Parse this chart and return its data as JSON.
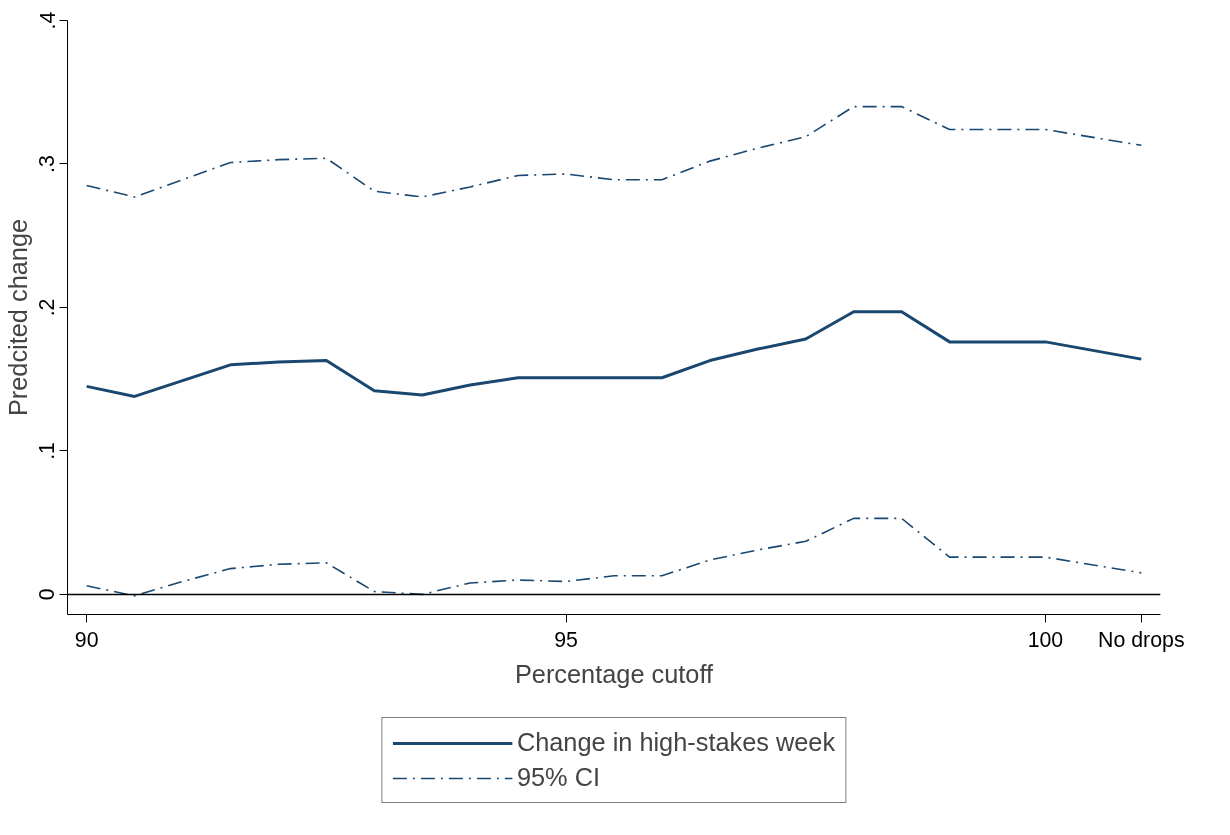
{
  "chart_data": {
    "type": "line",
    "xlabel": "Percentage cutoff",
    "ylabel": "Predcited change",
    "x": [
      90,
      90.5,
      91,
      91.5,
      92,
      92.5,
      93,
      93.5,
      94,
      94.5,
      95,
      95.5,
      96,
      96.5,
      97,
      97.5,
      98,
      98.5,
      99,
      99.5,
      100,
      101
    ],
    "series": [
      {
        "name": "Change in high-stakes week",
        "color": "#1a476f",
        "line_style": "solid",
        "values": [
          0.145,
          0.138,
          0.149,
          0.16,
          0.162,
          0.163,
          0.142,
          0.139,
          0.146,
          0.151,
          0.151,
          0.151,
          0.151,
          0.163,
          0.171,
          0.178,
          0.197,
          0.197,
          0.176,
          0.176,
          0.176,
          0.164
        ]
      },
      {
        "name": "95% CI",
        "color": "#1a476f",
        "line_style": "dashdot",
        "values": [
          0.285,
          0.277,
          0.289,
          0.301,
          0.303,
          0.304,
          0.281,
          0.277,
          0.284,
          0.292,
          0.293,
          0.289,
          0.289,
          0.302,
          0.311,
          0.319,
          0.34,
          0.34,
          0.324,
          0.324,
          0.324,
          0.313
        ]
      },
      {
        "color": "#1a476f",
        "line_style": "dashdot",
        "values": [
          0.006,
          -0.001,
          0.009,
          0.018,
          0.021,
          0.022,
          0.002,
          0.0,
          0.008,
          0.01,
          0.009,
          0.013,
          0.013,
          0.024,
          0.031,
          0.037,
          0.053,
          0.053,
          0.026,
          0.026,
          0.026,
          0.015
        ]
      }
    ],
    "xlim": [
      89.8,
      101.2
    ],
    "ylim": [
      -0.014,
      0.4
    ],
    "xticks": [
      90,
      95,
      100,
      {
        "value": 101,
        "label": "No drops"
      }
    ],
    "yticks": [
      {
        "value": 0,
        "label": "0"
      },
      {
        "value": 0.1,
        "label": ".1"
      },
      {
        "value": 0.2,
        "label": ".2"
      },
      {
        "value": 0.3,
        "label": ".3"
      },
      {
        "value": 0.4,
        "label": ".4"
      }
    ],
    "ref_lines": [
      {
        "axis": "y",
        "value": 0,
        "color": "#000000"
      }
    ],
    "grid": false,
    "legend": "bottom",
    "marker": "none"
  }
}
